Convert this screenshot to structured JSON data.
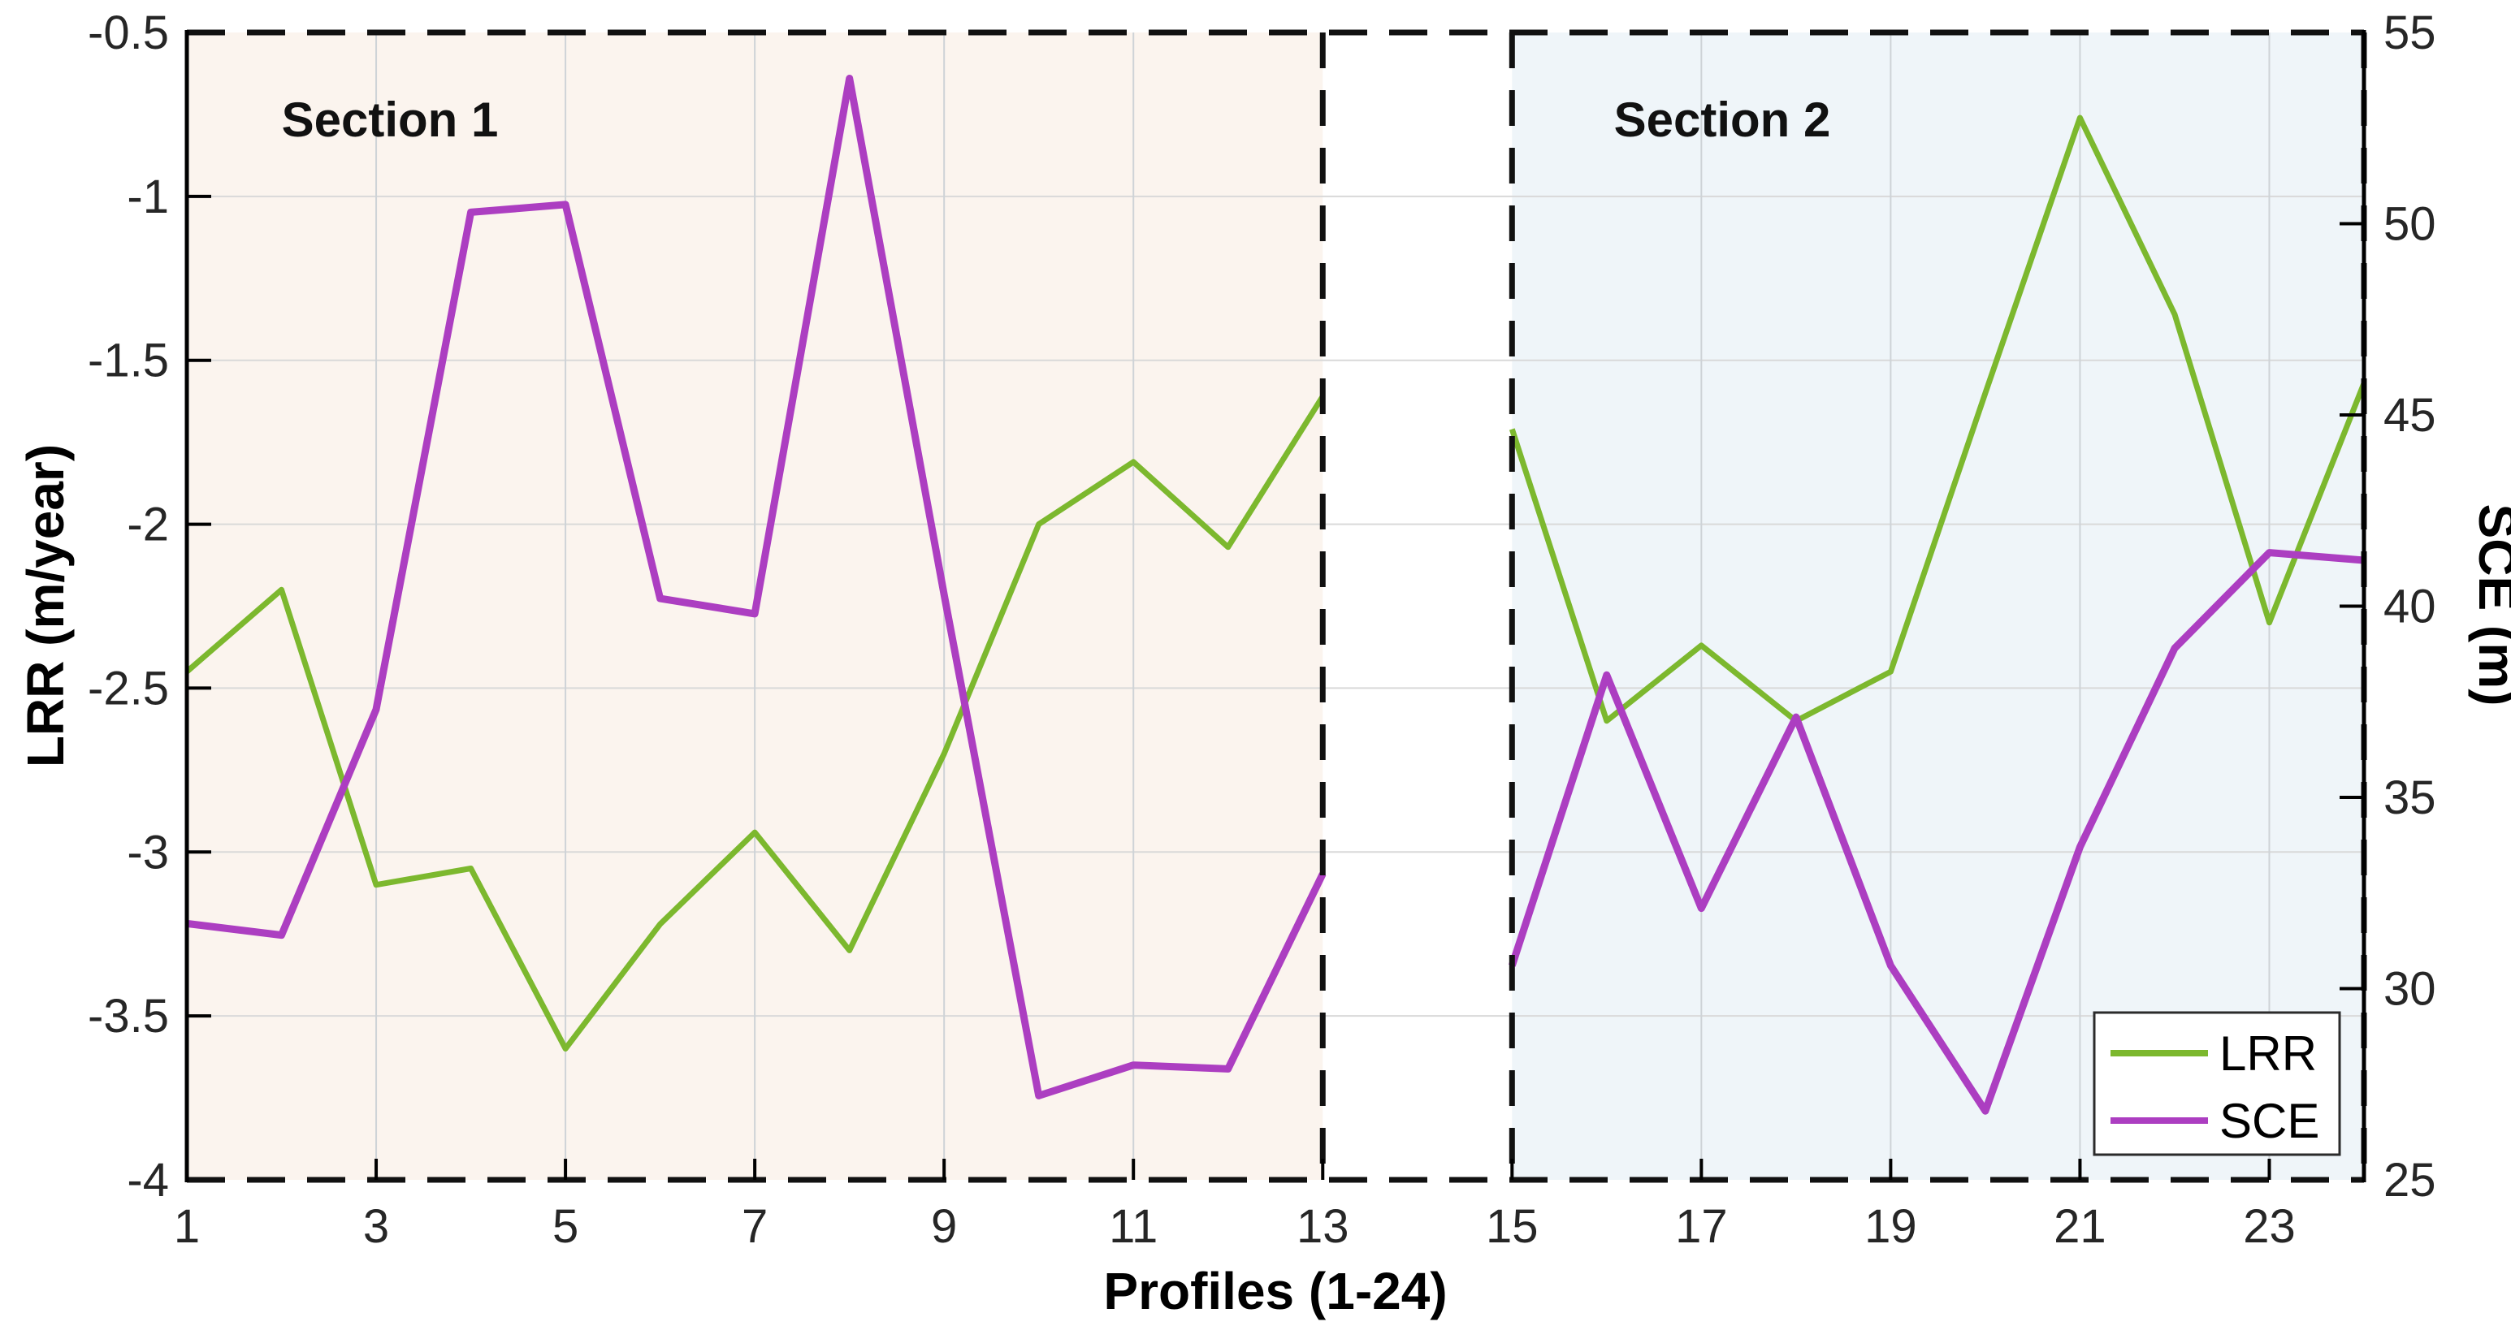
{
  "figure_title": "",
  "chart_data": {
    "type": "line",
    "title": "",
    "xlabel": "Profiles (1-24)",
    "ylabel_left": "LRR (m/year)",
    "ylabel_right": "SCE (m)",
    "x_range": [
      1,
      24
    ],
    "ylim_left": [
      -4,
      -0.5
    ],
    "ylim_right": [
      25,
      55
    ],
    "grid": "on",
    "legend_position": "bottom-right",
    "x_tick_labels": [
      "1",
      "3",
      "5",
      "7",
      "9",
      "11",
      "13",
      "15",
      "17",
      "19",
      "21",
      "23"
    ],
    "x_tick_values": [
      1,
      3,
      5,
      7,
      9,
      11,
      13,
      15,
      17,
      19,
      21,
      23
    ],
    "grid_x_values": [
      3,
      5,
      7,
      9,
      11,
      17,
      19,
      21,
      23
    ],
    "left_tick_labels": [
      "-0.5",
      "-1",
      "-1.5",
      "-2",
      "-2.5",
      "-3",
      "-3.5",
      "-4"
    ],
    "left_tick_values": [
      -0.5,
      -1,
      -1.5,
      -2,
      -2.5,
      -3,
      -3.5,
      -4
    ],
    "right_tick_labels": [
      "55",
      "50",
      "45",
      "40",
      "35",
      "30",
      "25"
    ],
    "right_tick_values": [
      55,
      50,
      45,
      40,
      35,
      30,
      25
    ],
    "sections": [
      {
        "label": "Section 1",
        "x_start": 1,
        "x_end": 13,
        "fill": "#fbf4ee",
        "label_center_x": 480,
        "label_baseline_y": 168
      },
      {
        "label": "Section 2",
        "x_start": 15,
        "x_end": 24,
        "fill": "#eff5f9",
        "label_center_x": 2120,
        "label_baseline_y": 168
      }
    ],
    "divider_x_values": [
      13,
      15,
      24
    ],
    "series": [
      {
        "name": "LRR",
        "axis": "left",
        "color": "#7cb82e",
        "width": 7,
        "segments": [
          {
            "x": [
              1,
              2,
              3,
              4,
              5,
              6,
              7,
              8,
              9,
              10,
              11,
              12,
              13
            ],
            "y": [
              -2.45,
              -2.2,
              -3.1,
              -3.05,
              -3.6,
              -3.22,
              -2.94,
              -3.3,
              -2.7,
              -2.0,
              -1.81,
              -2.07,
              -1.61
            ]
          },
          {
            "x": [
              15,
              16,
              17,
              18,
              19,
              20,
              21,
              22,
              23,
              24
            ],
            "y": [
              -1.71,
              -2.6,
              -2.37,
              -2.6,
              -2.45,
              -1.6,
              -0.76,
              -1.36,
              -2.3,
              -1.57
            ]
          }
        ]
      },
      {
        "name": "SCE",
        "axis": "right",
        "color": "#ac3ec1",
        "width": 9,
        "segments": [
          {
            "x": [
              1,
              2,
              3,
              4,
              5,
              6,
              7,
              8,
              9,
              10,
              11,
              12,
              13
            ],
            "y": [
              31.7,
              31.4,
              37.3,
              50.3,
              50.5,
              40.2,
              39.8,
              53.8,
              40.3,
              27.2,
              28.0,
              27.9,
              33.0
            ]
          },
          {
            "x": [
              15,
              16,
              17,
              18,
              19,
              20,
              21,
              22,
              23,
              24
            ],
            "y": [
              30.6,
              38.2,
              32.1,
              37.1,
              30.6,
              26.8,
              33.7,
              38.9,
              41.4,
              41.2
            ]
          }
        ]
      }
    ],
    "legend": {
      "items": [
        {
          "label": "LRR",
          "color": "#7cb82e"
        },
        {
          "label": "SCE",
          "color": "#ac3ec1"
        }
      ]
    }
  },
  "style_colors": {
    "grid_line": "#d9d9d9",
    "x_grid_line": "#ced3d7",
    "axis_line": "#000000",
    "dashed_frame": "#111111",
    "tick_text": "#262626",
    "legend_border": "#2b2b2b",
    "legend_background": "#ffffff"
  }
}
